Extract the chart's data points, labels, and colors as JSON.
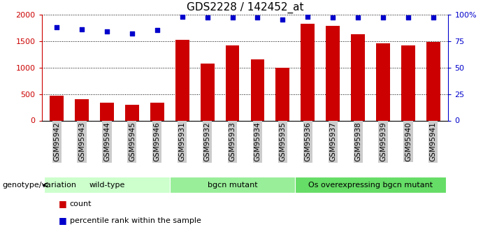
{
  "title": "GDS2228 / 142452_at",
  "samples": [
    "GSM95942",
    "GSM95943",
    "GSM95944",
    "GSM95945",
    "GSM95946",
    "GSM95931",
    "GSM95932",
    "GSM95933",
    "GSM95934",
    "GSM95935",
    "GSM95936",
    "GSM95937",
    "GSM95938",
    "GSM95939",
    "GSM95940",
    "GSM95941"
  ],
  "counts": [
    470,
    400,
    340,
    300,
    330,
    1520,
    1070,
    1420,
    1150,
    1000,
    1820,
    1790,
    1630,
    1450,
    1420,
    1480
  ],
  "percentile_ranks": [
    88,
    86,
    84,
    82,
    85,
    98,
    97,
    97,
    97,
    95,
    98,
    97,
    97,
    97,
    97,
    97
  ],
  "groups": [
    {
      "label": "wild-type",
      "start": 0,
      "end": 5,
      "color": "#ccffcc"
    },
    {
      "label": "bgcn mutant",
      "start": 5,
      "end": 10,
      "color": "#99ee99"
    },
    {
      "label": "Os overexpressing bgcn mutant",
      "start": 10,
      "end": 16,
      "color": "#66dd66"
    }
  ],
  "bar_color": "#cc0000",
  "dot_color": "#0000cc",
  "left_axis_color": "#cc0000",
  "right_axis_color": "#0000cc",
  "ylim_left": [
    0,
    2000
  ],
  "ylim_right": [
    0,
    100
  ],
  "yticks_left": [
    0,
    500,
    1000,
    1500,
    2000
  ],
  "yticks_right": [
    0,
    25,
    50,
    75,
    100
  ],
  "ytick_labels_right": [
    "0",
    "25",
    "50",
    "75",
    "100%"
  ],
  "legend_count_label": "count",
  "legend_pct_label": "percentile rank within the sample",
  "background_color": "#ffffff",
  "tick_bg_color": "#cccccc",
  "title_fontsize": 11,
  "axis_label_fontsize": 8
}
